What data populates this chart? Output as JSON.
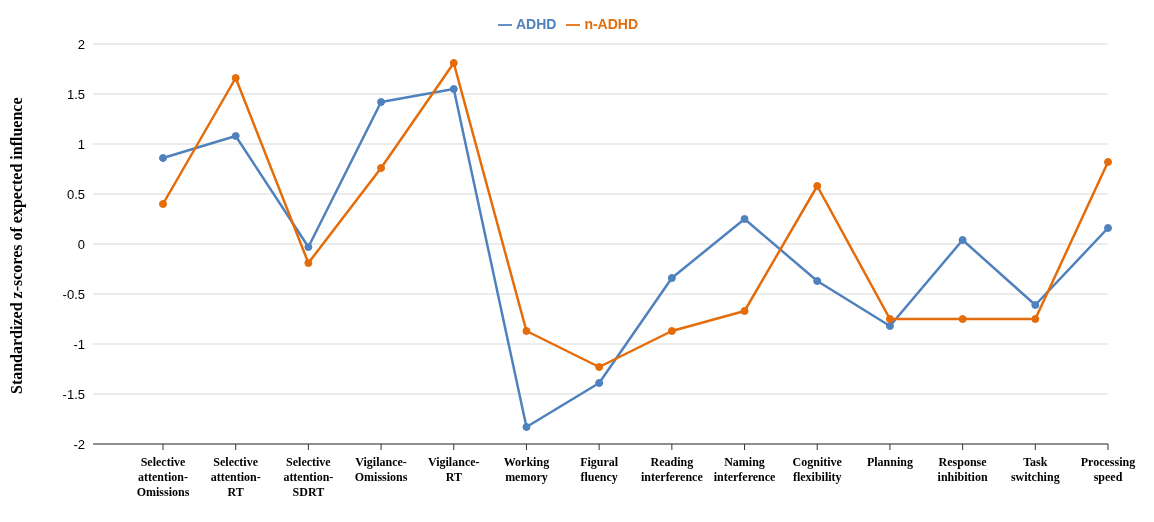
{
  "chart_data": {
    "type": "line",
    "ylabel": "Standardized z-scores of expected influence",
    "categories": [
      "Selective attention-Omissions",
      "Selective attention-RT",
      "Selective attention-SDRT",
      "Vigilance-Omissions",
      "Vigilance-RT",
      "Working memory",
      "Figural fluency",
      "Reading interference",
      "Naming interference",
      "Cognitive flexibility",
      "Planning",
      "Response inhibition",
      "Task switching",
      "Processing speed"
    ],
    "series": [
      {
        "name": "ADHD",
        "color": "#4f81bd",
        "values": [
          0.86,
          1.08,
          -0.03,
          1.42,
          1.55,
          -1.83,
          -1.39,
          -0.34,
          0.25,
          -0.37,
          -0.82,
          0.04,
          -0.61,
          0.16
        ]
      },
      {
        "name": "n-ADHD",
        "color": "#e46c0a",
        "values": [
          0.4,
          1.66,
          -0.19,
          0.76,
          1.81,
          -0.87,
          -1.23,
          -0.87,
          -0.67,
          0.58,
          -0.75,
          -0.75,
          -0.75,
          0.82
        ]
      }
    ],
    "ylim": [
      -2,
      2
    ],
    "yticks": [
      -2,
      -1.5,
      -1,
      -0.5,
      0,
      0.5,
      1,
      1.5,
      2
    ],
    "grid": "y",
    "legend": "top",
    "marker": "circle",
    "line_style": "solid"
  }
}
